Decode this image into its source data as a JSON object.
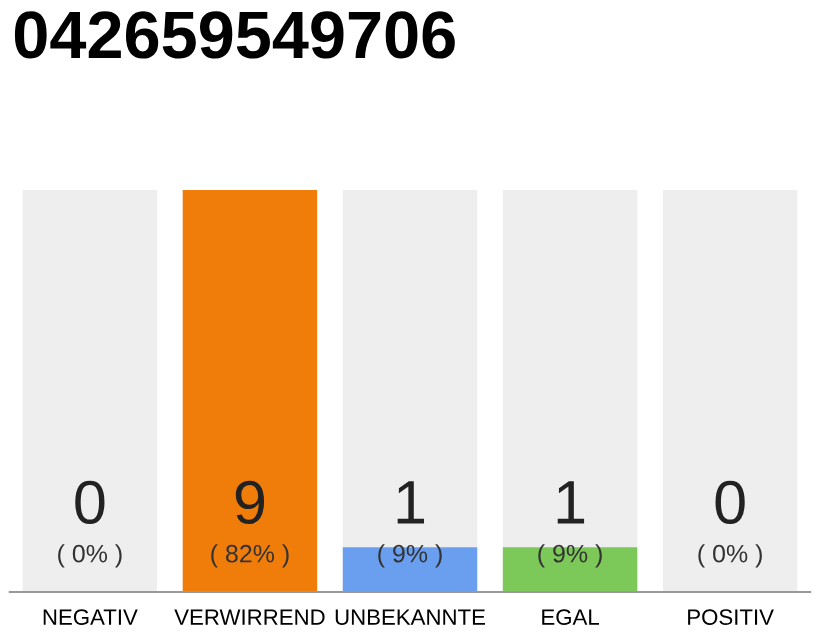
{
  "chart_data": {
    "type": "bar",
    "title": "042659549706",
    "categories": [
      "NEGATIV",
      "VERWIRREND",
      "UNBEKANNTE",
      "EGAL",
      "POSITIV"
    ],
    "series": [
      {
        "color": "#eeeeee",
        "values": [
          9,
          null,
          9,
          9,
          9
        ]
      },
      {
        "colors": [
          "#f07d0a",
          "#f07d0a",
          "#6a9ff0",
          "#7cc95a",
          "#7cc95a"
        ],
        "values": [
          0,
          9,
          1,
          1,
          0
        ],
        "value_labels": [
          "0",
          "9",
          "1",
          "1",
          "0"
        ]
      }
    ],
    "ylim": [
      0,
      9
    ],
    "tick_labels": "x",
    "grid": false,
    "legend": false,
    "annotations": [
      "( 0% )",
      "( 82% )",
      "( 9% )",
      "( 9% )",
      "( 0% )"
    ]
  }
}
